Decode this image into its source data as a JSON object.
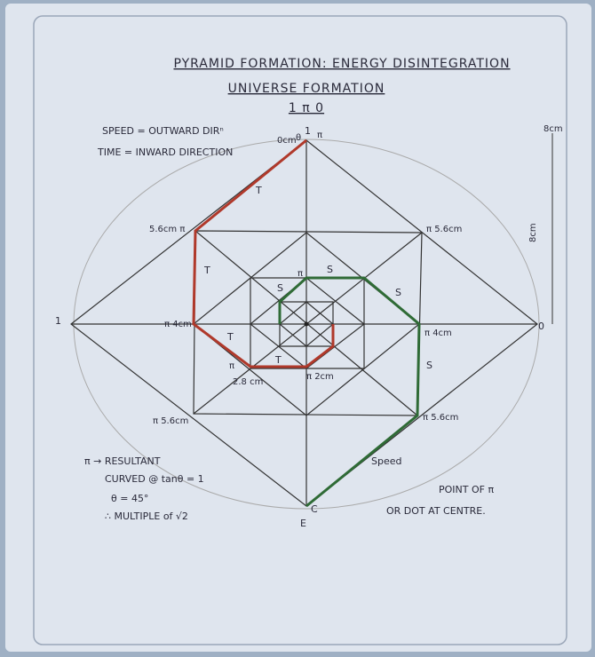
{
  "title": [
    "PYRAMID FORMATION: ENERGY DISINTEGRATION",
    "UNIVERSE FORMATION",
    "1 π 0"
  ],
  "definitions": [
    "SPEED = OUTWARD DIRⁿ",
    "TIME = INWARD DIRECTION"
  ],
  "labels": [
    "1",
    "θ",
    "0cm",
    "π",
    "T",
    "5.6cm π",
    "π 5.6cm",
    "T",
    "π 4cm",
    "T",
    "π",
    "2.8 cm",
    "T",
    "π 2cm",
    "S",
    "S",
    "π 4cm",
    "S",
    "π 5.6cm",
    "π 5.6cm",
    "Speed",
    "1",
    "0",
    "8cm",
    "8cm",
    "C",
    "E",
    "S",
    "π"
  ],
  "notes": [
    "π → RESULTANT",
    "CURVED @ tanθ = 1",
    "θ = 45°",
    "∴ MULTIPLE of √2"
  ],
  "footnote": [
    "POINT OF π",
    "OR DOT AT CENTRE."
  ]
}
